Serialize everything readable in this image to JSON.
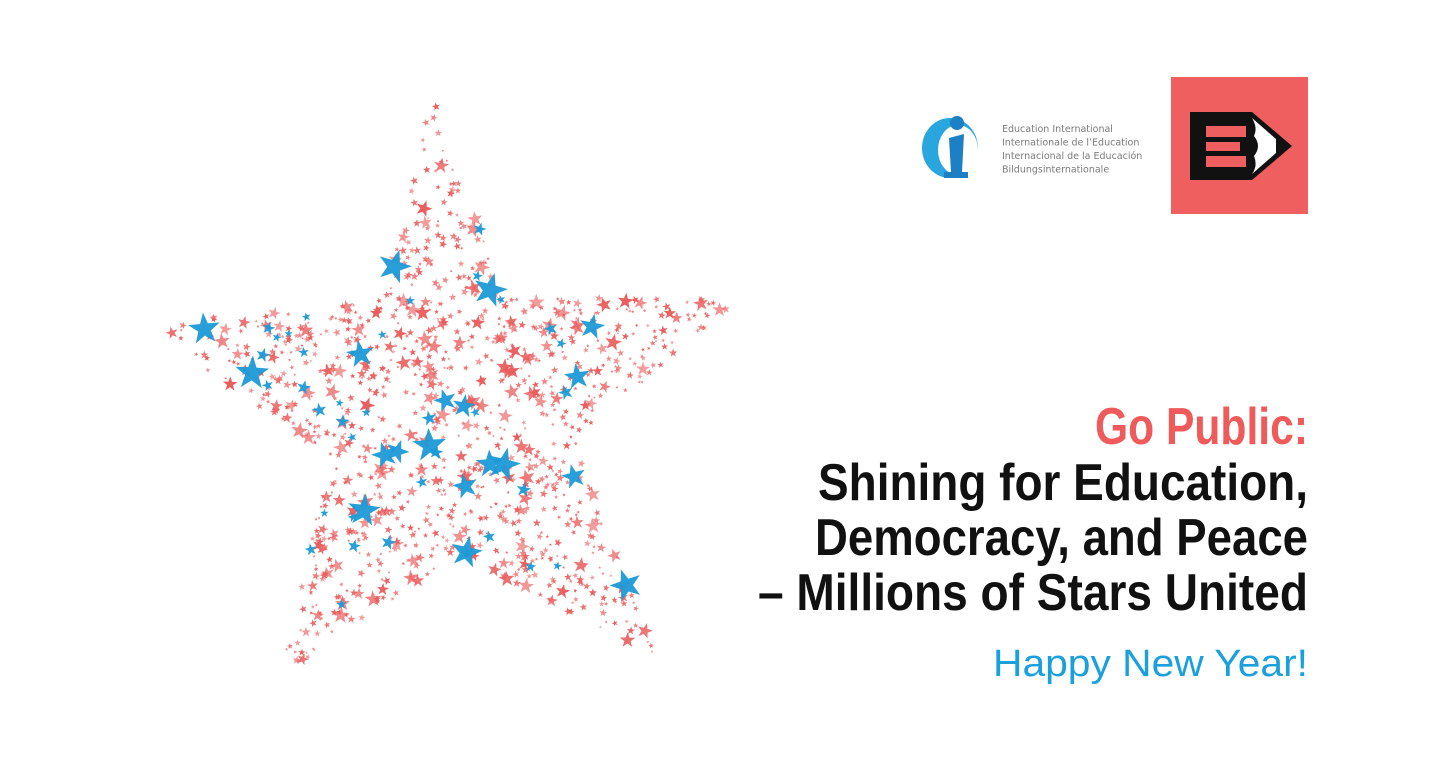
{
  "logo": {
    "lines": [
      "Education International",
      "Internationale de l’Education",
      "Internacional de la Educación",
      "Bildungsinternationale"
    ]
  },
  "headline": {
    "kicker": "Go Public:",
    "lines": [
      "Shining for Education,",
      "Democracy, and Peace",
      "– Millions of Stars United"
    ]
  },
  "greeting": "Happy New Year!"
}
